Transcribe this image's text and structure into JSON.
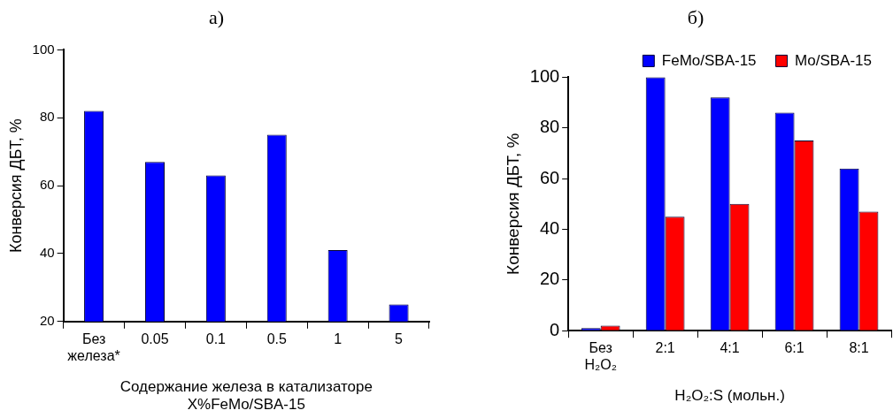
{
  "chart_data": [
    {
      "type": "bar",
      "title": "а)",
      "ylabel": "Конверсия ДБТ, %",
      "xlabel": "Содержание железа в катализаторе\nX%FeMo/SBA-15",
      "categories": [
        "Без\nжелеза*",
        "0.05",
        "0.1",
        "0.5",
        "1",
        "5"
      ],
      "values": [
        82,
        67,
        63,
        75,
        41,
        25
      ],
      "color": "#0000ff",
      "ylim": [
        20,
        100
      ],
      "yticks": [
        20,
        40,
        60,
        80,
        100
      ],
      "grid": false
    },
    {
      "type": "bar",
      "title": "б)",
      "ylabel": "Конверсия ДБТ, %",
      "xlabel": "H₂O₂:S (мольн.)",
      "categories": [
        "Без\nH₂O₂",
        "2:1",
        "4:1",
        "6:1",
        "8:1"
      ],
      "series": [
        {
          "name": "FeMo/SBA-15",
          "color": "#0000ff",
          "values": [
            1,
            100,
            92,
            86,
            64
          ]
        },
        {
          "name": "Mo/SBA-15",
          "color": "#ff0000",
          "values": [
            2,
            45,
            50,
            75,
            47
          ]
        }
      ],
      "ylim": [
        0,
        100
      ],
      "yticks": [
        0,
        20,
        40,
        60,
        80,
        100
      ],
      "grid": false,
      "legend": "top right"
    }
  ]
}
